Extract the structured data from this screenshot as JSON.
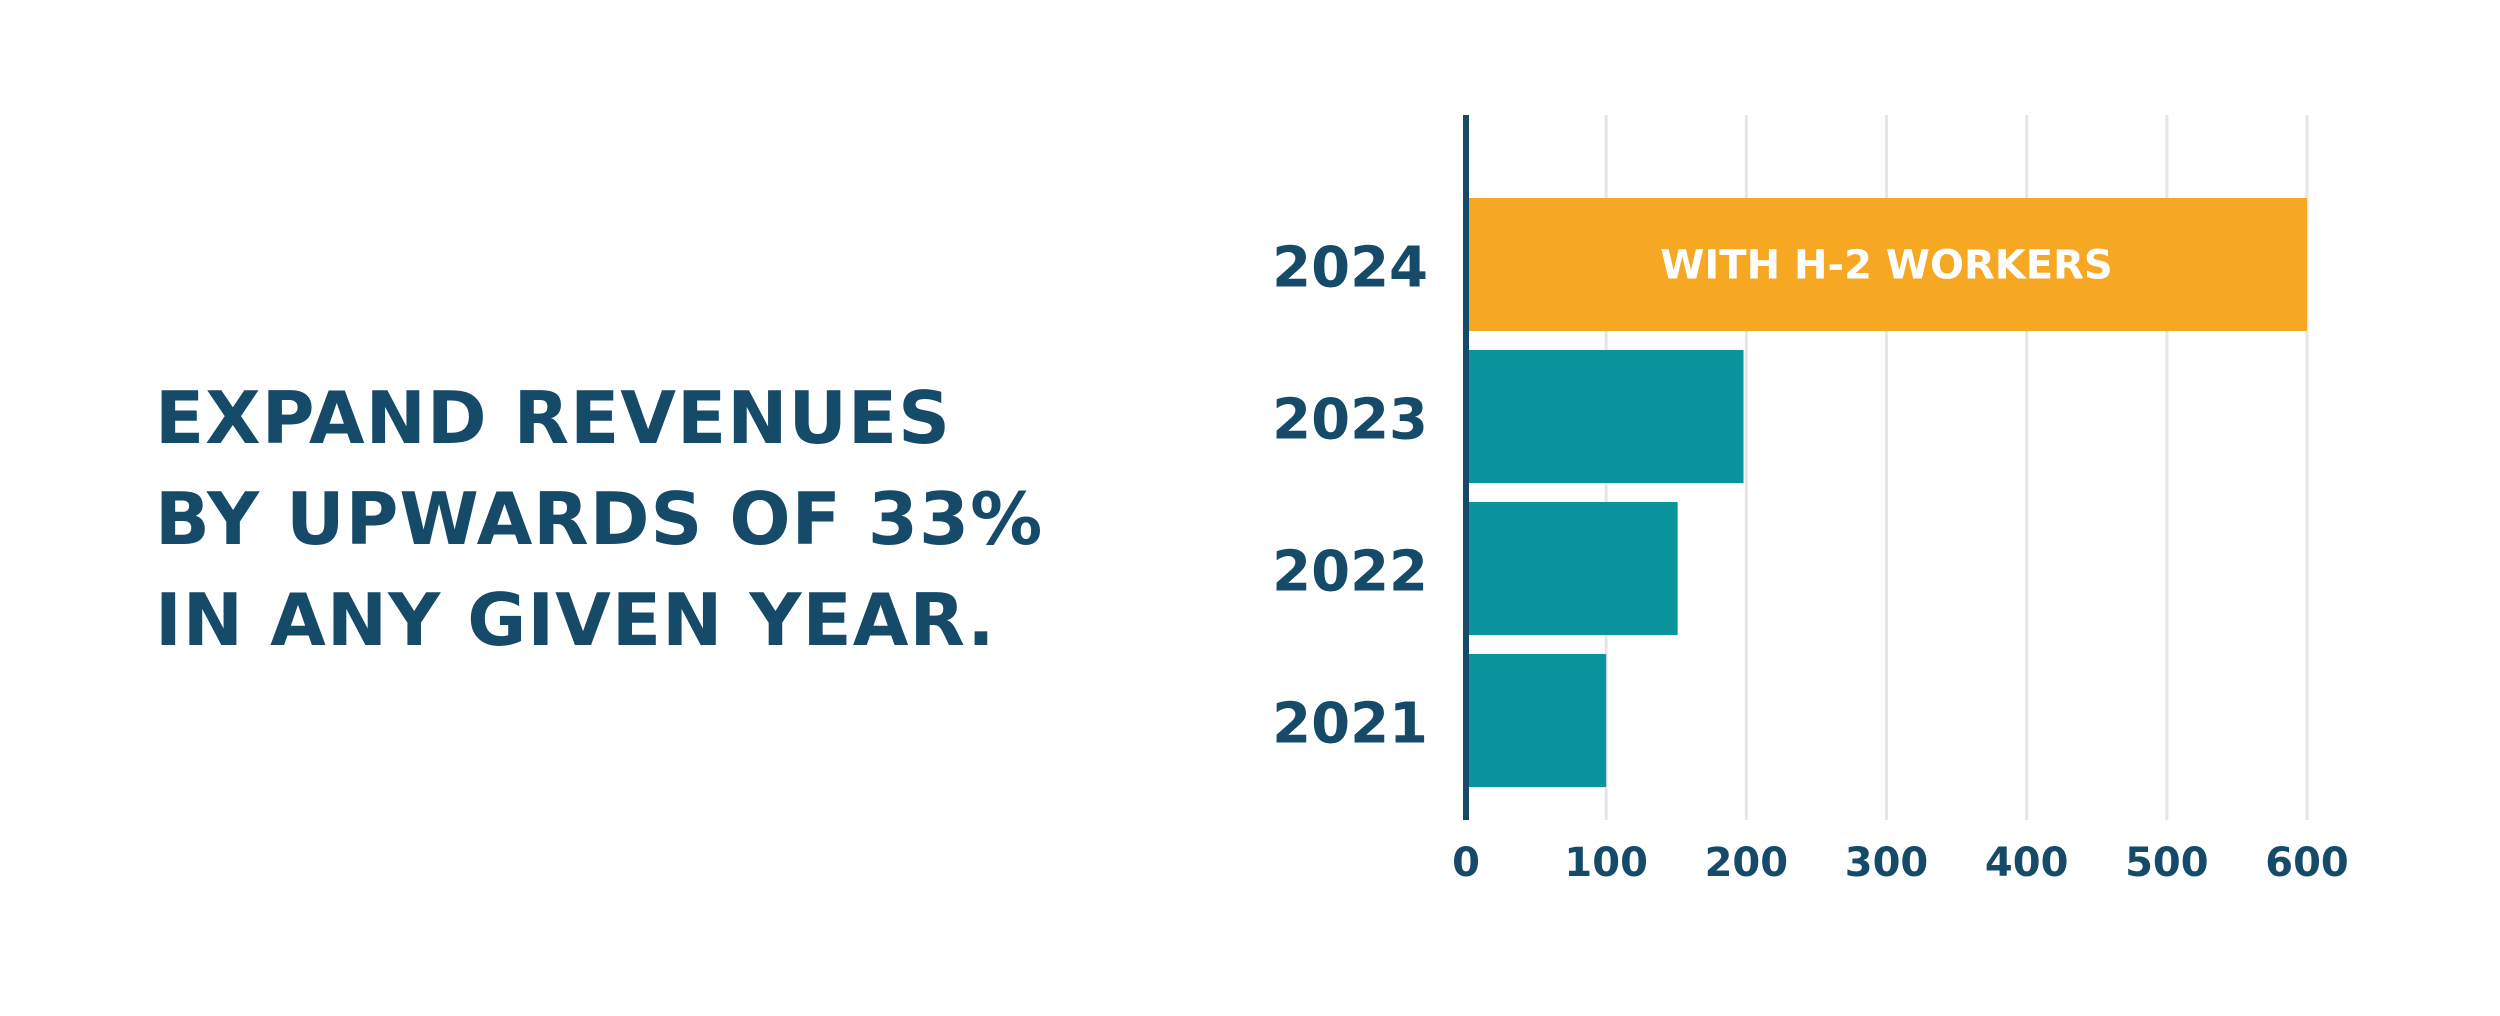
{
  "headline": {
    "line1": "EXPAND REVENUES",
    "line2": "BY UPWARDS OF 33%",
    "line3": "IN ANY GIVEN YEAR."
  },
  "chart_data": {
    "type": "bar",
    "orientation": "horizontal",
    "categories": [
      "2024",
      "2023",
      "2022",
      "2021"
    ],
    "values": [
      600,
      198,
      151,
      100
    ],
    "bar_labels": [
      "WITH H-2 WORKERS",
      "",
      "",
      ""
    ],
    "bar_colors": [
      "#f7a823",
      "#0b949e",
      "#0b949e",
      "#0b949e"
    ],
    "xticks": [
      "0",
      "100",
      "200",
      "300",
      "400",
      "500",
      "600"
    ],
    "xlim": [
      0,
      600
    ],
    "grid": true,
    "title": "",
    "xlabel": "",
    "ylabel": ""
  },
  "colors": {
    "text": "#154a68",
    "highlight": "#f7a823",
    "bar": "#0b949e",
    "grid": "#e6e6e6",
    "axis": "#154a68",
    "bar_label": "#ffffff"
  }
}
